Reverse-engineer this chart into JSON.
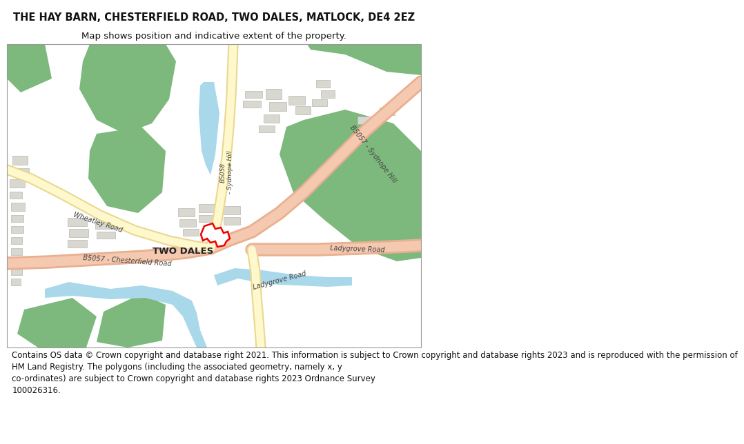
{
  "title": "THE HAY BARN, CHESTERFIELD ROAD, TWO DALES, MATLOCK, DE4 2EZ",
  "subtitle": "Map shows position and indicative extent of the property.",
  "footer_lines": [
    "Contains OS data © Crown copyright and database right 2021. This information is subject to Crown copyright and database rights 2023 and is reproduced with the permission of",
    "HM Land Registry. The polygons (including the associated geometry, namely x, y",
    "co-ordinates) are subject to Crown copyright and database rights 2023 Ordnance Survey",
    "100026316."
  ],
  "bg_color": "#ffffff",
  "map_bg": "#f5f5f0",
  "green_color": "#7db87d",
  "blue_color": "#a8d8ea",
  "road_major_fill": "#f5c8b0",
  "road_major_stroke": "#e8b090",
  "road_minor_fill": "#fff8cc",
  "road_minor_stroke": "#e8d890",
  "building_fill": "#d8d8d0",
  "building_stroke": "#b8b8b0",
  "plot_fill": "#ffffff",
  "plot_stroke": "#ee0000",
  "label_color": "#444444",
  "title_fontsize": 10.5,
  "subtitle_fontsize": 9.5,
  "footer_fontsize": 8.5,
  "road_label_fontsize": 7.0
}
